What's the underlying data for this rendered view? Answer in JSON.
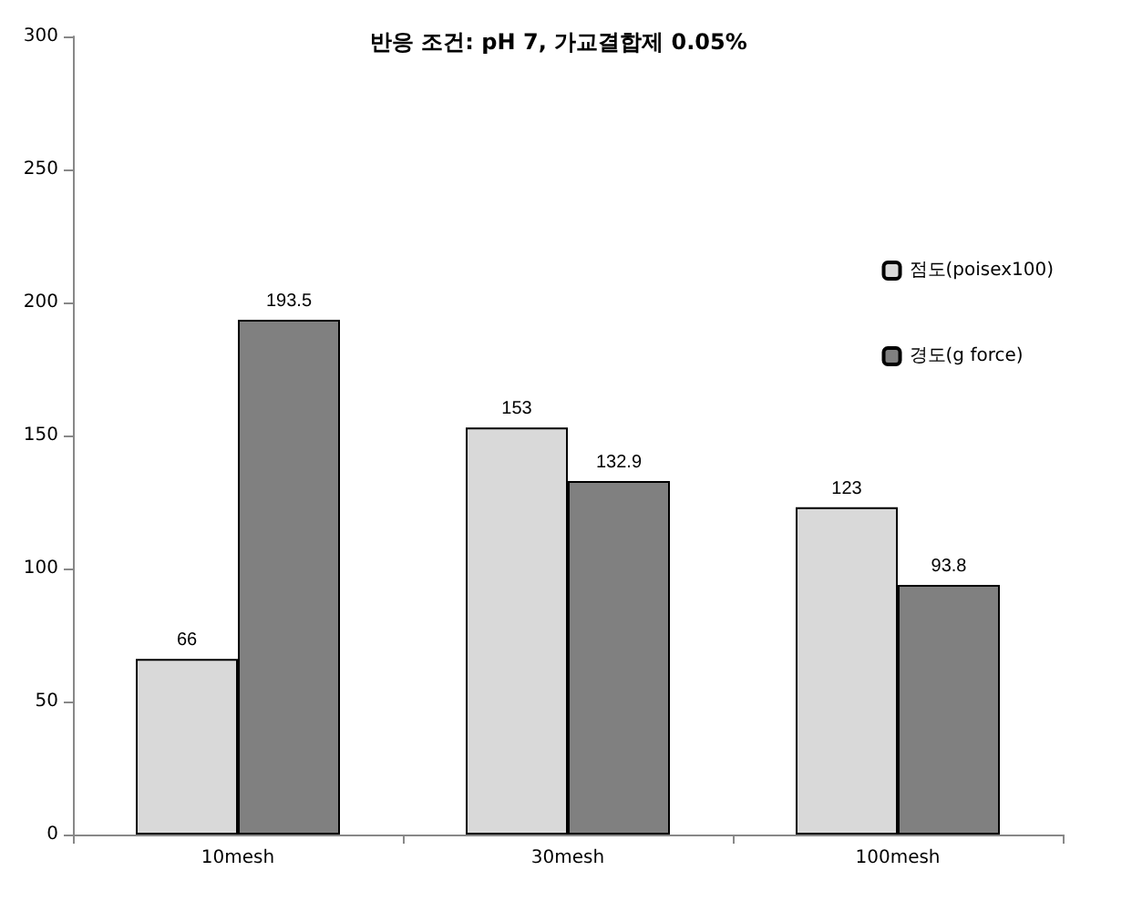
{
  "chart_data": {
    "type": "bar",
    "title": "반응 조건: pH 7, 가교결합제 0.05%",
    "categories": [
      "10mesh",
      "30mesh",
      "100mesh"
    ],
    "series": [
      {
        "name": "점도(poisex100)",
        "color": "#d9d9d9",
        "values": [
          66,
          153,
          123
        ]
      },
      {
        "name": "경도(g force)",
        "color": "#808080",
        "values": [
          193.5,
          132.9,
          93.8
        ]
      }
    ],
    "ylim": [
      0,
      300
    ],
    "yticks": [
      0,
      50,
      100,
      150,
      200,
      250,
      300
    ],
    "grid": false,
    "legend": "right",
    "data_labels": true
  }
}
